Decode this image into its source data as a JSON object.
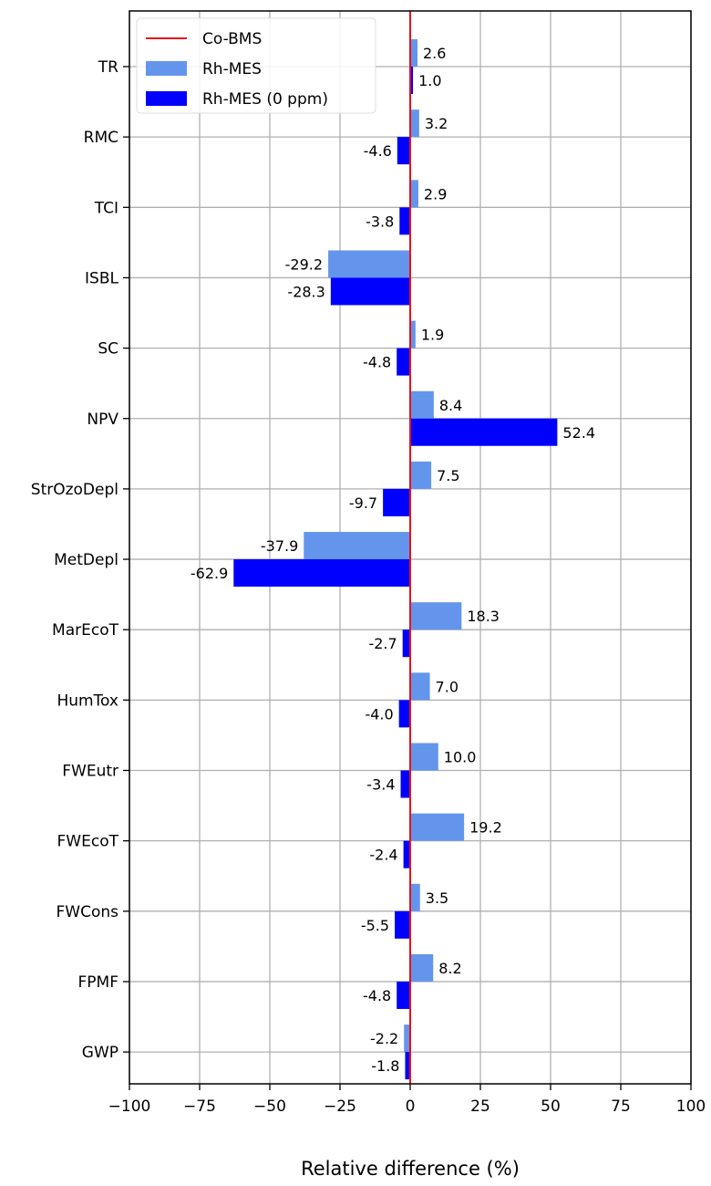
{
  "chart_data": {
    "type": "bar",
    "orientation": "horizontal",
    "categories": [
      "TR",
      "RMC",
      "TCI",
      "ISBL",
      "SC",
      "NPV",
      "StrOzoDepl",
      "MetDepl",
      "MarEcoT",
      "HumTox",
      "FWEutr",
      "FWEcoT",
      "FWCons",
      "FPMF",
      "GWP"
    ],
    "series": [
      {
        "name": "Rh-MES",
        "color": "#6495ED",
        "values": [
          2.6,
          3.2,
          2.9,
          -29.2,
          1.9,
          8.4,
          7.5,
          -37.9,
          18.3,
          7.0,
          10.0,
          19.2,
          3.5,
          8.2,
          -2.2
        ],
        "labels": [
          "2.6",
          "3.2",
          "2.9",
          "-29.2",
          "1.9",
          "8.4",
          "7.5",
          "-37.9",
          "18.3",
          "7.0",
          "10.0",
          "19.2",
          "3.5",
          "8.2",
          "-2.2"
        ]
      },
      {
        "name": "Rh-MES (0 ppm)",
        "color": "#0000FF",
        "values": [
          1.0,
          -4.6,
          -3.8,
          -28.3,
          -4.8,
          52.4,
          -9.7,
          -62.9,
          -2.7,
          -4.0,
          -3.4,
          -2.4,
          -5.5,
          -4.8,
          -1.8
        ],
        "labels": [
          "1.0",
          "-4.6",
          "-3.8",
          "-28.3",
          "-4.8",
          "52.4",
          "-9.7",
          "-62.9",
          "-2.7",
          "-4.0",
          "-3.4",
          "-2.4",
          "-5.5",
          "-4.8",
          "-1.8"
        ]
      }
    ],
    "reference_line": {
      "name": "Co-BMS",
      "value": 0,
      "color": "#E8101A"
    },
    "xlabel": "Relative difference (%)",
    "ylabel": "",
    "xlim": [
      -100,
      100
    ],
    "xticks": [
      -100,
      -75,
      -50,
      -25,
      0,
      25,
      50,
      75,
      100
    ],
    "xtick_labels": [
      "−100",
      "−75",
      "−50",
      "−25",
      "0",
      "25",
      "50",
      "75",
      "100"
    ],
    "grid": true,
    "legend_position": "top-left"
  }
}
